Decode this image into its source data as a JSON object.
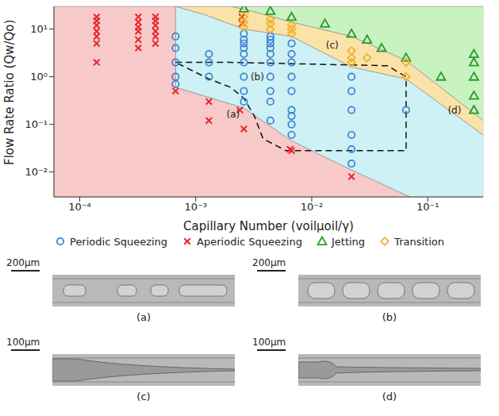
{
  "chart_data": {
    "type": "scatter",
    "log": true,
    "grid": true,
    "legend": "bottom",
    "x_label": "Capillary Number (voilμoil/γ)",
    "y_label": "Flow Rate Ratio (Qw/Qo)",
    "xlim": [
      6e-05,
      0.3
    ],
    "ylim": [
      0.003,
      30
    ],
    "xticks": [
      {
        "value": 0.0001,
        "label": "10⁻⁴"
      },
      {
        "value": 0.001,
        "label": "10⁻³"
      },
      {
        "value": 0.01,
        "label": "10⁻²"
      },
      {
        "value": 0.1,
        "label": "10⁻¹"
      }
    ],
    "yticks": [
      {
        "value": 0.01,
        "label": "10⁻²"
      },
      {
        "value": 0.1,
        "label": "10⁻¹"
      },
      {
        "value": 1,
        "label": "10⁰"
      },
      {
        "value": 10,
        "label": "10¹"
      }
    ],
    "regions": [
      {
        "color": "#c9f2c1",
        "x": [
          6e-05,
          0.3
        ],
        "y": [
          30,
          30
        ]
      },
      {
        "color": "#fbe3a8",
        "x": [
          0.00067,
          0.002,
          0.003,
          0.0067,
          0.022,
          0.065,
          0.3
        ],
        "y": [
          30,
          30,
          24,
          14,
          7,
          2.2,
          0.12
        ]
      },
      {
        "color": "#cdf1f4",
        "x": [
          0.00067,
          0.0012,
          0.0026,
          0.0067,
          0.022,
          0.065,
          0.3
        ],
        "y": [
          30,
          20,
          10,
          7,
          1.6,
          0.9,
          0.06
        ]
      },
      {
        "color": "#f8c9c9",
        "x": [
          6e-05,
          0.00067,
          0.00067,
          0.0026,
          0.0067,
          0.022,
          0.07
        ],
        "y": [
          30,
          30,
          0.6,
          0.22,
          0.045,
          0.011,
          0.003
        ]
      }
    ],
    "boundary": {
      "line_style": "dashed",
      "color": "#111111",
      "x": [
        0.00067,
        0.002,
        0.045,
        0.065,
        0.065,
        0.006,
        0.0038,
        0.0032,
        0.0026,
        0.002,
        0.0013,
        0.00067
      ],
      "y": [
        2,
        2,
        1.7,
        1.0,
        0.028,
        0.028,
        0.05,
        0.15,
        0.35,
        0.6,
        0.9,
        2
      ]
    },
    "series": [
      {
        "name": "Periodic Squeezing",
        "color": "#3a7fd5",
        "marker": "circle_open",
        "x": [
          0.00067,
          0.00067,
          0.00067,
          0.00067,
          0.00067,
          0.0013,
          0.0013,
          0.0013,
          0.0026,
          0.0026,
          0.0026,
          0.0026,
          0.0026,
          0.0026,
          0.0026,
          0.0026,
          0.0026,
          0.0044,
          0.0044,
          0.0044,
          0.0044,
          0.0044,
          0.0044,
          0.0044,
          0.0044,
          0.0044,
          0.0044,
          0.0067,
          0.0067,
          0.0067,
          0.0067,
          0.0067,
          0.0067,
          0.0067,
          0.0067,
          0.0067,
          0.022,
          0.022,
          0.022,
          0.022,
          0.022,
          0.022,
          0.065
        ],
        "values": [
          7,
          4,
          2,
          1,
          0.7,
          3,
          2,
          1,
          8,
          6,
          5,
          4,
          3,
          2,
          1,
          0.5,
          0.3,
          7,
          6,
          5,
          4,
          3,
          2,
          1,
          0.5,
          0.3,
          0.12,
          5,
          3,
          2,
          1,
          0.5,
          0.2,
          0.15,
          0.1,
          0.06,
          1,
          0.5,
          0.2,
          0.06,
          0.03,
          0.015,
          0.2
        ]
      },
      {
        "name": "Aperiodic Squeezing",
        "color": "#e8262a",
        "marker": "x",
        "x": [
          0.00014,
          0.00014,
          0.00014,
          0.00014,
          0.00014,
          0.00014,
          0.00014,
          0.00032,
          0.00032,
          0.00032,
          0.00032,
          0.00032,
          0.00032,
          0.00045,
          0.00045,
          0.00045,
          0.00045,
          0.00045,
          0.00045,
          0.00067,
          0.0013,
          0.0013,
          0.0024,
          0.0026,
          0.0025,
          0.0025,
          0.0065,
          0.0067,
          0.022
        ],
        "values": [
          18,
          15,
          12,
          9,
          7,
          5,
          2,
          18,
          14,
          11,
          9,
          6,
          4,
          18,
          15,
          12,
          9,
          7,
          5,
          0.5,
          0.3,
          0.12,
          0.2,
          0.08,
          18,
          13,
          0.03,
          0.028,
          0.008
        ]
      },
      {
        "name": "Jetting",
        "color": "#2a9a2a",
        "marker": "triangle",
        "x": [
          0.0026,
          0.0044,
          0.0067,
          0.013,
          0.022,
          0.03,
          0.04,
          0.065,
          0.13,
          0.25,
          0.25,
          0.25,
          0.25,
          0.25
        ],
        "values": [
          27,
          24,
          18,
          13,
          8,
          6,
          4,
          2.5,
          1,
          3,
          2,
          1,
          0.4,
          0.2
        ]
      },
      {
        "name": "Transition",
        "color": "#f0b030",
        "marker": "diamond",
        "x": [
          0.0026,
          0.0026,
          0.0026,
          0.0044,
          0.0044,
          0.0044,
          0.0067,
          0.0067,
          0.0067,
          0.022,
          0.022,
          0.022,
          0.03,
          0.065,
          0.065
        ],
        "values": [
          18,
          14,
          11,
          16,
          13,
          10,
          12,
          10,
          8,
          3.5,
          2.5,
          2,
          2.5,
          2,
          1
        ]
      }
    ],
    "annotations": [
      {
        "text": "(a)",
        "x": 0.0021,
        "y": 0.16
      },
      {
        "text": "(b)",
        "x": 0.0034,
        "y": 1
      },
      {
        "text": "(c)",
        "x": 0.015,
        "y": 4.5
      },
      {
        "text": "(d)",
        "x": 0.17,
        "y": 0.2
      }
    ],
    "panels": [
      {
        "label": "(a)",
        "scale_bar": "200μm"
      },
      {
        "label": "(b)",
        "scale_bar": "200μm"
      },
      {
        "label": "(c)",
        "scale_bar": "100μm"
      },
      {
        "label": "(d)",
        "scale_bar": "100μm"
      }
    ]
  }
}
